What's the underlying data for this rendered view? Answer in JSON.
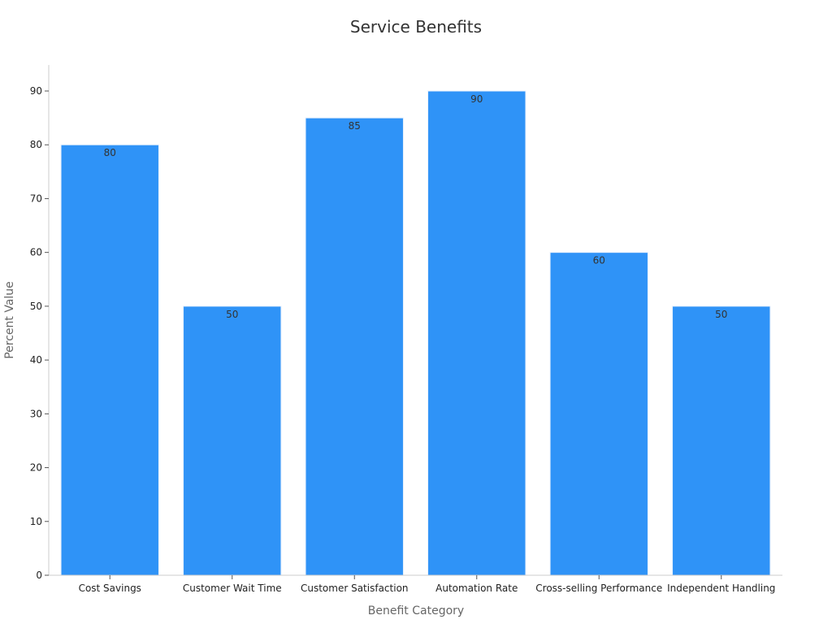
{
  "chart_data": {
    "type": "bar",
    "title": "Service Benefits",
    "xlabel": "Benefit Category",
    "ylabel": "Percent Value",
    "categories": [
      "Cost Savings",
      "Customer Wait Time",
      "Customer Satisfaction",
      "Automation Rate",
      "Cross-selling Performance",
      "Independent Handling"
    ],
    "values": [
      80,
      50,
      85,
      90,
      60,
      50
    ],
    "ylim": [
      0,
      95
    ],
    "yticks": [
      0,
      10,
      20,
      30,
      40,
      50,
      60,
      70,
      80,
      90
    ],
    "grid": false,
    "bar_color": "#2f93f7"
  }
}
